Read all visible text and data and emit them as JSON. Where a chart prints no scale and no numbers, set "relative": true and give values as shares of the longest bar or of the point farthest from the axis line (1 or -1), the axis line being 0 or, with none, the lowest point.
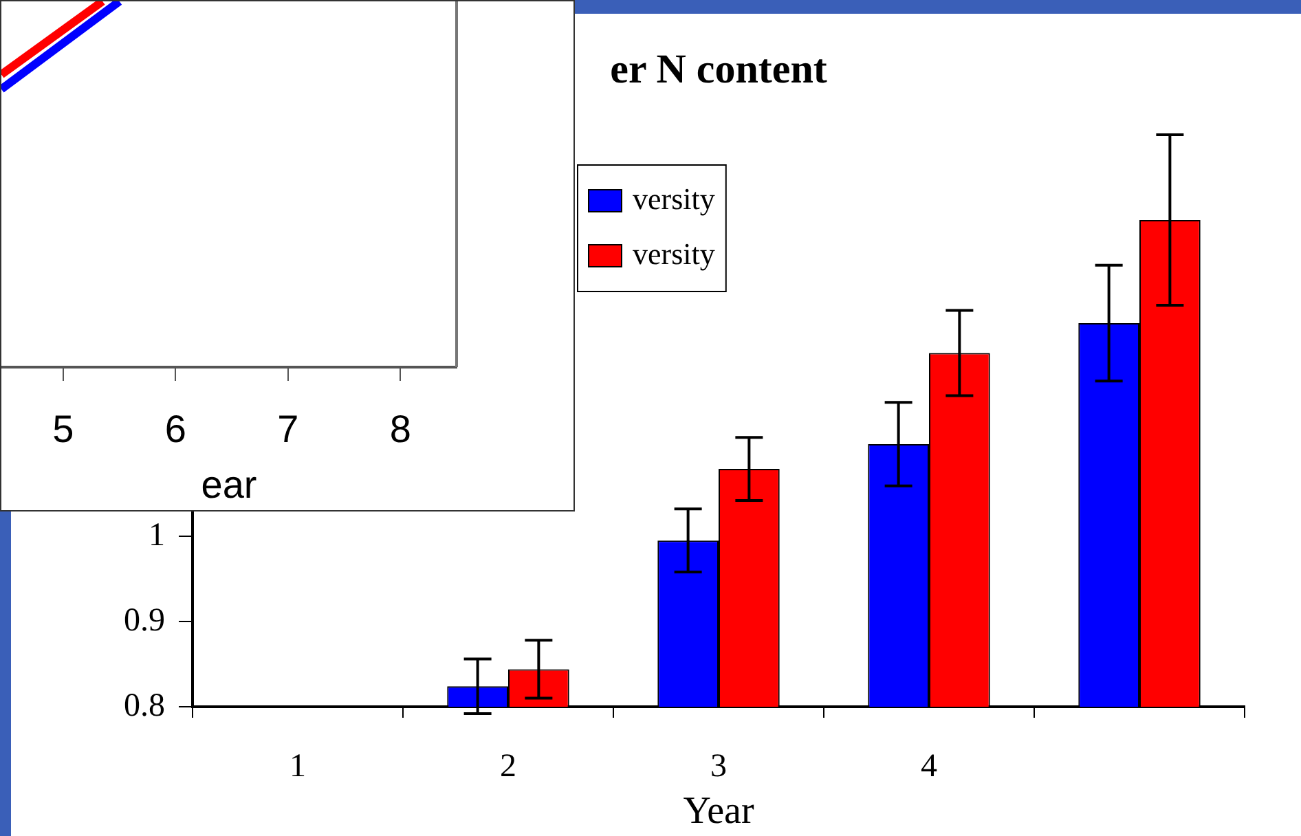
{
  "chart_data": [
    {
      "type": "bar",
      "title": "er N content",
      "xlabel": "Year",
      "categories": [
        "1",
        "2",
        "3",
        "4",
        null
      ],
      "ylim": [
        0.8,
        1.5
      ],
      "yticks": [
        0.8,
        0.9,
        1
      ],
      "legend": "top left",
      "series": [
        {
          "name": "versity",
          "color": "#0000ff",
          "values": [
            null,
            0.824,
            0.995,
            1.108,
            1.25
          ],
          "errors": [
            null,
            0.032,
            0.037,
            0.049,
            0.068
          ]
        },
        {
          "name": "versity",
          "color": "#ff0000",
          "values": [
            null,
            0.844,
            1.079,
            1.215,
            1.371
          ],
          "errors": [
            null,
            0.034,
            0.037,
            0.05,
            0.1
          ]
        }
      ]
    },
    {
      "type": "line",
      "xlabel": "ear",
      "relative": true,
      "xlim": [
        4.45,
        8.5
      ],
      "xticks": [
        5,
        6,
        7,
        8
      ],
      "tick_labels": "x",
      "series": [
        {
          "color": "#0000ff",
          "x": [
            4.45,
            5.5
          ],
          "values": [
            0.76,
            1
          ]
        },
        {
          "color": "#ff0000",
          "x": [
            4.45,
            5.35
          ],
          "values": [
            0.8,
            1
          ]
        }
      ]
    }
  ]
}
